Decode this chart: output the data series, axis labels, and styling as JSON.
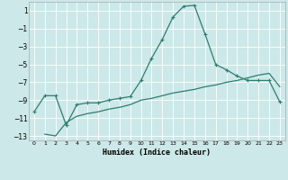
{
  "title": "",
  "xlabel": "Humidex (Indice chaleur)",
  "bg_color": "#cce8e8",
  "grid_color": "#ffffff",
  "line_color": "#2e7d6e",
  "xlim": [
    -0.5,
    23.5
  ],
  "ylim": [
    -13.5,
    2.0
  ],
  "yticks": [
    1,
    -1,
    -3,
    -5,
    -7,
    -9,
    -11,
    -13
  ],
  "xticks": [
    0,
    1,
    2,
    3,
    4,
    5,
    6,
    7,
    8,
    9,
    10,
    11,
    12,
    13,
    14,
    15,
    16,
    17,
    18,
    19,
    20,
    21,
    22,
    23
  ],
  "line1_x": [
    0,
    1,
    2,
    3,
    4,
    5,
    6,
    7,
    8,
    9,
    10,
    11,
    12,
    13,
    14,
    15,
    16,
    17,
    18,
    19,
    20,
    21,
    22,
    23
  ],
  "line1_y": [
    -10.3,
    -8.5,
    -8.5,
    -11.8,
    -9.5,
    -9.3,
    -9.3,
    -9.0,
    -8.8,
    -8.6,
    -6.8,
    -4.3,
    -2.2,
    0.3,
    1.5,
    1.6,
    -1.6,
    -5.0,
    -5.6,
    -6.3,
    -6.8,
    -6.8,
    -6.8,
    -9.2
  ],
  "line2_x": [
    1,
    2,
    3,
    4,
    5,
    6,
    7,
    8,
    9,
    10,
    11,
    12,
    13,
    14,
    15,
    16,
    17,
    18,
    19,
    20,
    21,
    22,
    23
  ],
  "line2_y": [
    -12.8,
    -13.0,
    -11.5,
    -10.8,
    -10.5,
    -10.3,
    -10.0,
    -9.8,
    -9.5,
    -9.0,
    -8.8,
    -8.5,
    -8.2,
    -8.0,
    -7.8,
    -7.5,
    -7.3,
    -7.0,
    -6.8,
    -6.5,
    -6.2,
    -6.0,
    -7.5
  ]
}
